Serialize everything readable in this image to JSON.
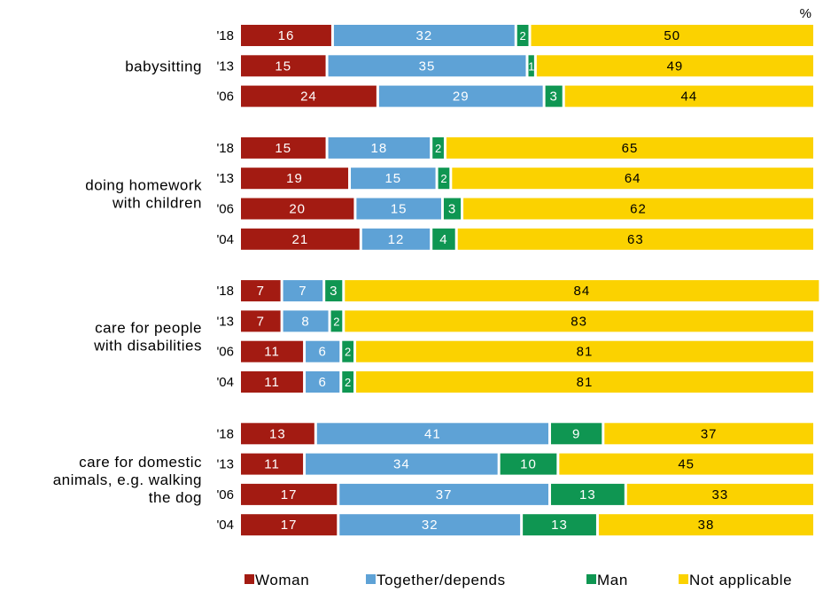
{
  "chart_data": {
    "type": "bar",
    "stacked": true,
    "orientation": "horizontal",
    "unit_label": "%",
    "xlim": [
      0,
      100
    ],
    "series": [
      {
        "name": "Woman",
        "color": "#a31b12",
        "label_color": "#ffffff"
      },
      {
        "name": "Together/depends",
        "color": "#5ea2d6",
        "label_color": "#ffffff"
      },
      {
        "name": "Man",
        "color": "#0f9652",
        "label_color": "#ffffff"
      },
      {
        "name": "Not applicable",
        "color": "#fbd200",
        "label_color": "#000000"
      }
    ],
    "groups": [
      {
        "label_lines": [
          "babysitting"
        ],
        "rows": [
          {
            "year": "'18",
            "values": [
              16,
              32,
              2,
              50
            ]
          },
          {
            "year": "'13",
            "values": [
              15,
              35,
              1,
              49
            ]
          },
          {
            "year": "'06",
            "values": [
              24,
              29,
              3,
              44
            ]
          }
        ]
      },
      {
        "label_lines": [
          "doing homework",
          "with children"
        ],
        "rows": [
          {
            "year": "'18",
            "values": [
              15,
              18,
              2,
              65
            ]
          },
          {
            "year": "'13",
            "values": [
              19,
              15,
              2,
              64
            ]
          },
          {
            "year": "'06",
            "values": [
              20,
              15,
              3,
              62
            ]
          },
          {
            "year": "'04",
            "values": [
              21,
              12,
              4,
              63
            ]
          }
        ]
      },
      {
        "label_lines": [
          "care for people",
          "with disabilities"
        ],
        "rows": [
          {
            "year": "'18",
            "values": [
              7,
              7,
              3,
              84
            ]
          },
          {
            "year": "'13",
            "values": [
              7,
              8,
              2,
              83
            ]
          },
          {
            "year": "'06",
            "values": [
              11,
              6,
              2,
              81
            ]
          },
          {
            "year": "'04",
            "values": [
              11,
              6,
              2,
              81
            ]
          }
        ]
      },
      {
        "label_lines": [
          "care for domestic",
          "animals, e.g. walking",
          "the dog"
        ],
        "rows": [
          {
            "year": "'18",
            "values": [
              13,
              41,
              9,
              37
            ]
          },
          {
            "year": "'13",
            "values": [
              11,
              34,
              10,
              45
            ]
          },
          {
            "year": "'06",
            "values": [
              17,
              37,
              13,
              33
            ]
          },
          {
            "year": "'04",
            "values": [
              17,
              32,
              13,
              38
            ]
          }
        ]
      }
    ],
    "legend_position": "bottom"
  }
}
